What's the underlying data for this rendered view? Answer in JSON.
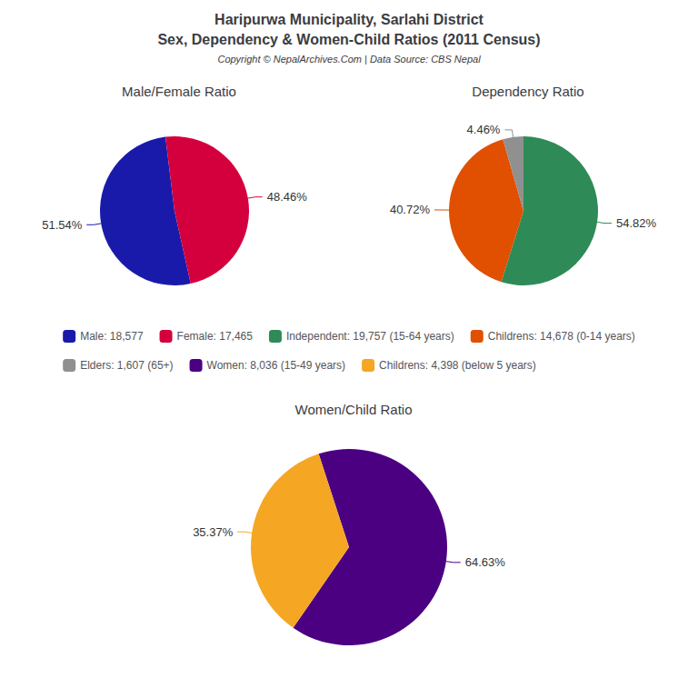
{
  "title": "Haripurwa Municipality, Sarlahi District",
  "subtitle": "Sex, Dependency & Women-Child Ratios (2011 Census)",
  "annotations": [
    "Copyright © NepalArchives.Com | Data Source: CBS Nepal"
  ],
  "chart_data": [
    {
      "type": "pie",
      "title": "Male/Female Ratio",
      "categories": [
        "Male: 18,577",
        "Female: 17,465"
      ],
      "values": [
        51.54,
        48.46
      ],
      "value_labels": [
        "51.54%",
        "48.46%"
      ],
      "colors": [
        "#1a1aaa",
        "#d4003d"
      ],
      "data_labels": true,
      "legend": "center"
    },
    {
      "type": "pie",
      "title": "Dependency Ratio",
      "categories": [
        "Independent: 19,757 (15-64 years)",
        "Childrens: 14,678 (0-14 years)",
        "Elders: 1,607 (65+)"
      ],
      "values": [
        54.82,
        40.72,
        4.46
      ],
      "value_labels": [
        "54.82%",
        "40.72%",
        "4.46%"
      ],
      "colors": [
        "#2e8b57",
        "#e05000",
        "#909090"
      ],
      "data_labels": true,
      "legend": "center"
    },
    {
      "type": "pie",
      "title": "Women/Child Ratio",
      "categories": [
        "Women: 8,036 (15-49 years)",
        "Childrens: 4,398 (below 5 years)"
      ],
      "values": [
        64.63,
        35.37
      ],
      "value_labels": [
        "64.63%",
        "35.37%"
      ],
      "colors": [
        "#4b0082",
        "#f5a623"
      ],
      "data_labels": true,
      "legend": "center"
    }
  ]
}
